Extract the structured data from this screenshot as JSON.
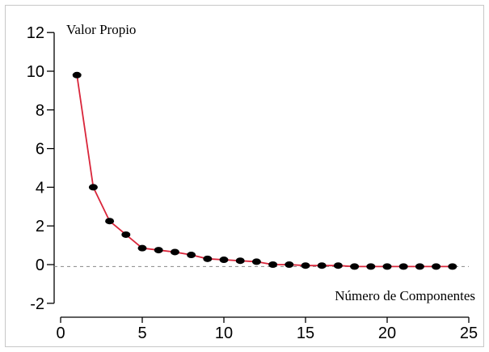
{
  "chart_data": {
    "type": "line",
    "xlabel": "Número de Componentes",
    "ylabel": "Valor Propio",
    "xlim": [
      -0.5,
      25
    ],
    "ylim": [
      -2,
      12
    ],
    "xticks": [
      0,
      5,
      10,
      15,
      20,
      25
    ],
    "yticks": [
      -2,
      0,
      2,
      4,
      6,
      8,
      10,
      12
    ],
    "reference_line_y": -0.1,
    "grid": false,
    "colors": {
      "line": "#d9253a",
      "marker": "#000000",
      "reference": "#888888"
    },
    "series": [
      {
        "x": [
          1,
          2,
          3,
          4,
          5,
          6,
          7,
          8,
          9,
          10,
          11,
          12,
          13,
          14,
          15,
          16,
          17,
          18,
          19,
          20,
          21,
          22,
          23,
          24
        ],
        "y": [
          9.8,
          4.0,
          2.25,
          1.55,
          0.85,
          0.75,
          0.65,
          0.5,
          0.3,
          0.25,
          0.2,
          0.15,
          0.0,
          0.0,
          -0.05,
          -0.05,
          -0.05,
          -0.1,
          -0.1,
          -0.1,
          -0.1,
          -0.1,
          -0.1,
          -0.1
        ]
      }
    ]
  }
}
